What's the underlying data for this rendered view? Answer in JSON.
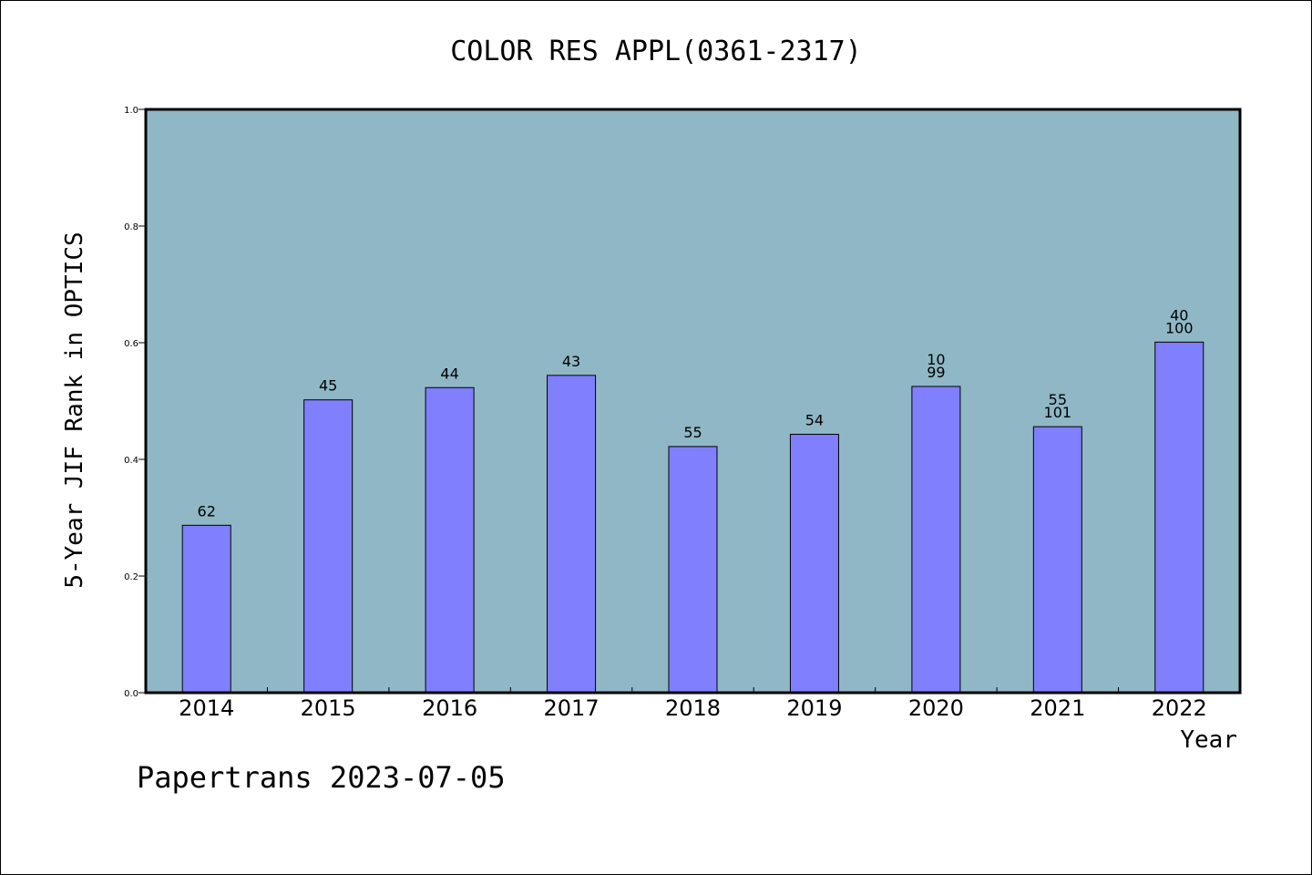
{
  "chart_data": {
    "type": "bar",
    "title": "COLOR RES APPL(0361-2317)",
    "xlabel": "Year",
    "ylabel": "5-Year JIF Rank in OPTICS",
    "ylim": [
      0,
      1.0
    ],
    "yticks": [
      "0.0",
      "0.2",
      "0.4",
      "0.6",
      "0.8",
      "1.0"
    ],
    "categories": [
      "2014",
      "2015",
      "2016",
      "2017",
      "2018",
      "2019",
      "2020",
      "2021",
      "2022"
    ],
    "values": [
      0.287,
      0.502,
      0.523,
      0.544,
      0.422,
      0.443,
      0.525,
      0.456,
      0.601
    ],
    "bar_labels": [
      [
        "62"
      ],
      [
        "45"
      ],
      [
        "44"
      ],
      [
        "43"
      ],
      [
        "55"
      ],
      [
        "54"
      ],
      [
        "10",
        "99"
      ],
      [
        "55",
        "101"
      ],
      [
        "40",
        "100"
      ]
    ],
    "grid": false,
    "colors": {
      "plot_background": "#8fb7c6",
      "bar_fill": "#8080ff",
      "bar_stroke": "#000000"
    }
  },
  "footer": {
    "text": "Papertrans 2023-07-05"
  }
}
